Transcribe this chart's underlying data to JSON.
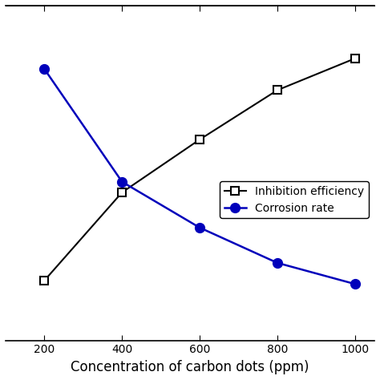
{
  "x": [
    200,
    400,
    600,
    800,
    1000
  ],
  "inhibition_y": [
    22,
    47,
    62,
    76,
    85
  ],
  "corrosion_y": [
    82,
    50,
    37,
    27,
    21
  ],
  "inhibition_color": "#000000",
  "corrosion_color": "#0000bb",
  "inhibition_label": "Inhibition efficiency",
  "corrosion_label": "Corrosion rate",
  "xlabel": "Concentration of carbon dots (ppm)",
  "xlim": [
    100,
    1050
  ],
  "ylim": [
    5,
    100
  ],
  "legend_fontsize": 10,
  "xlabel_fontsize": 12
}
